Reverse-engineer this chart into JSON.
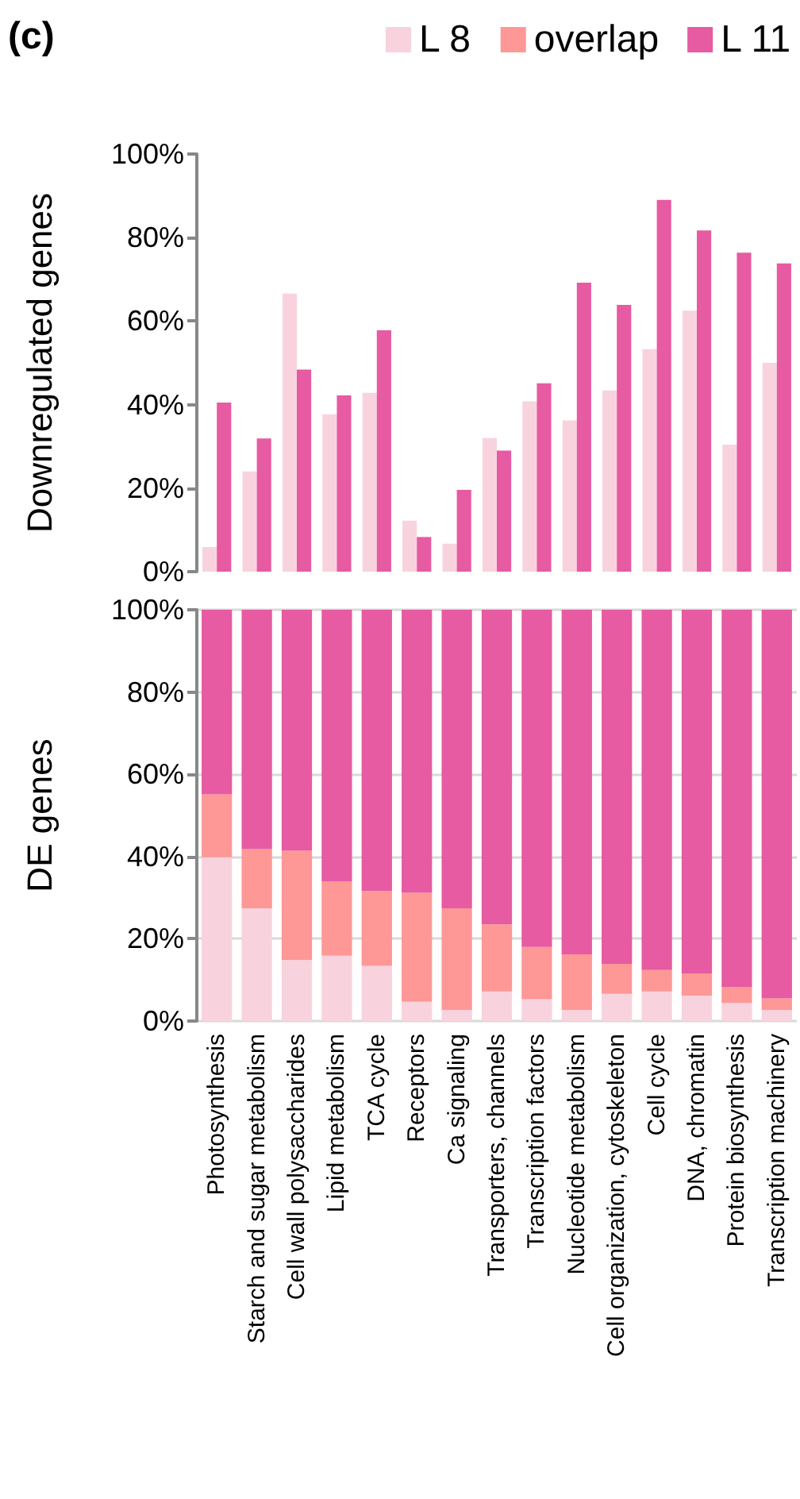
{
  "chart_data": [
    {
      "type": "bar",
      "title": "(c)",
      "ylabel": "Downregulated genes",
      "categories": [
        null,
        null,
        null,
        null,
        null,
        null,
        null,
        null,
        null,
        null,
        null,
        null,
        null,
        null,
        null
      ],
      "series": [
        {
          "color": "#f8d3de",
          "values": [
            5.9,
            24,
            66.6,
            37.7,
            42.8,
            12.2,
            6.7,
            32,
            40.8,
            36.2,
            43.4,
            53.3,
            62.5,
            30.4,
            50
          ]
        },
        {
          "color": "#e65ba2",
          "values": [
            40.5,
            31.9,
            48.4,
            42.2,
            57.8,
            8.3,
            19.6,
            29,
            45.1,
            69.2,
            63.9,
            89,
            81.7,
            76.4,
            73.8
          ]
        }
      ],
      "ylim": [
        0,
        100
      ],
      "yticks": [
        {
          "value": 0,
          "label": "0%"
        },
        {
          "value": 20,
          "label": "20%"
        },
        {
          "value": 40,
          "label": "40%"
        },
        {
          "value": 60,
          "label": "60%"
        },
        {
          "value": 80,
          "label": "80%"
        },
        {
          "value": 100,
          "label": "100%"
        }
      ],
      "tick_labels": "y",
      "grid": false
    },
    {
      "type": "bar",
      "stacked": true,
      "ylabel": "DE genes",
      "categories": [
        "Photosynthesis",
        "Starch and sugar metabolism",
        "Cell wall polysaccharides",
        "Lipid metabolism",
        "TCA cycle",
        "Receptors",
        "Ca signaling",
        "Transporters, channels",
        "Transcription factors",
        "Nucleotide metabolism",
        "Cell organization, cytoskeleton",
        "Cell cycle",
        "DNA, chromatin",
        "Protein biosynthesis",
        "Transcription machinery"
      ],
      "series": [
        {
          "name": "L 8",
          "color": "#f8d3de",
          "values": [
            39.8,
            27.4,
            14.8,
            15.9,
            13.4,
            4.7,
            2.7,
            7.2,
            5.3,
            2.7,
            6.6,
            7.2,
            6.2,
            4.4,
            2.7
          ]
        },
        {
          "name": "overlap",
          "color": "#fd9896",
          "values": [
            15.3,
            14.4,
            26.6,
            18.1,
            18.2,
            26.5,
            24.7,
            16.3,
            12.7,
            13.5,
            7.3,
            5.2,
            5.4,
            3.9,
            2.8
          ]
        },
        {
          "name": "L 11",
          "color": "#e65ba2",
          "values": [
            44.9,
            58.2,
            58.6,
            66,
            68.4,
            68.8,
            72.6,
            76.5,
            82,
            83.8,
            86.1,
            87.6,
            88.4,
            91.7,
            94.5
          ]
        }
      ],
      "ylim": [
        0,
        100
      ],
      "yticks": [
        {
          "value": 0,
          "label": "0%"
        },
        {
          "value": 20,
          "label": "20%"
        },
        {
          "value": 40,
          "label": "40%"
        },
        {
          "value": 60,
          "label": "60%"
        },
        {
          "value": 80,
          "label": "80%"
        },
        {
          "value": 100,
          "label": "100%"
        }
      ],
      "grid": "y",
      "legend": "top"
    }
  ]
}
